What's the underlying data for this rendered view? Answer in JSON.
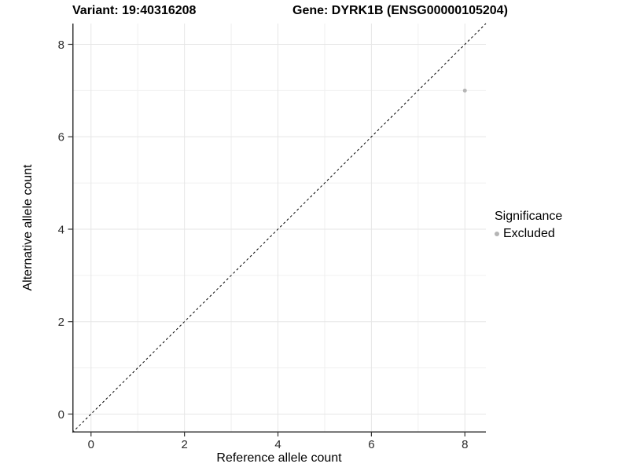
{
  "chart_data": {
    "type": "scatter",
    "title_left": "Variant: 19:40316208",
    "title_right": "Gene: DYRK1B (ENSG00000105204)",
    "xlabel": "Reference allele count",
    "ylabel": "Alternative allele count",
    "xlim": [
      -0.4,
      8.45
    ],
    "ylim": [
      -0.4,
      8.45
    ],
    "x_ticks": [
      0,
      2,
      4,
      6,
      8
    ],
    "y_ticks": [
      0,
      2,
      4,
      6,
      8
    ],
    "x_minor": [
      1,
      3,
      5,
      7
    ],
    "y_minor": [
      1,
      3,
      5,
      7
    ],
    "grid": "on",
    "points": [
      {
        "x": 8,
        "y": 7,
        "series": "Excluded",
        "color": "#b5b5b5",
        "radius": 2.5
      }
    ],
    "reference_line": {
      "type": "identity",
      "from": -0.4,
      "to": 8.45,
      "style": "dashed",
      "color": "#000000"
    },
    "legend": {
      "title": "Significance",
      "position": "right",
      "items": [
        {
          "label": "Excluded",
          "color": "#b5b5b5"
        }
      ]
    },
    "style": {
      "background": "#ffffff",
      "axis_color": "#333333",
      "tick_label_color": "#2b2b2b",
      "grid_major_color": "#e6e6e6",
      "grid_minor_color": "#f0f0f0"
    }
  }
}
